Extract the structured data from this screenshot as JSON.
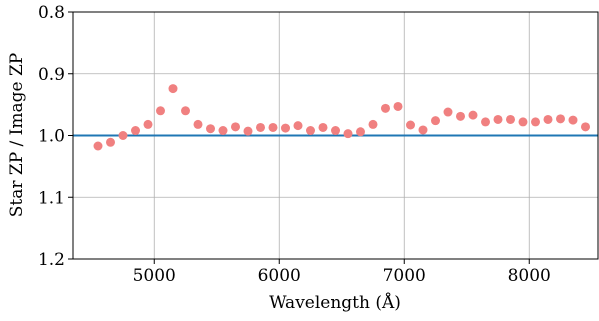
{
  "chart_data": {
    "type": "scatter",
    "title": "",
    "xlabel": "Wavelength (Å)",
    "ylabel": "Star ZP / Image ZP",
    "xlim": [
      4350,
      8550
    ],
    "ylim": [
      1.2,
      0.8
    ],
    "y_axis_inverted": true,
    "grid": true,
    "x_ticks": [
      {
        "value": 5000,
        "label": "5000"
      },
      {
        "value": 6000,
        "label": "6000"
      },
      {
        "value": 7000,
        "label": "7000"
      },
      {
        "value": 8000,
        "label": "8000"
      }
    ],
    "y_ticks": [
      {
        "value": 0.8,
        "label": "0.8"
      },
      {
        "value": 0.9,
        "label": "0.9"
      },
      {
        "value": 1.0,
        "label": "1.0"
      },
      {
        "value": 1.1,
        "label": "1.1"
      },
      {
        "value": 1.2,
        "label": "1.2"
      }
    ],
    "reference_line": {
      "y": 1.0,
      "color": "#1f77b4"
    },
    "series": [
      {
        "color": "#f08080",
        "x": [
          4550,
          4650,
          4750,
          4850,
          4950,
          5050,
          5150,
          5250,
          5350,
          5450,
          5550,
          5650,
          5750,
          5850,
          5950,
          6050,
          6150,
          6250,
          6350,
          6450,
          6550,
          6650,
          6750,
          6850,
          6950,
          7050,
          7150,
          7250,
          7350,
          7450,
          7550,
          7650,
          7750,
          7850,
          7950,
          8050,
          8150,
          8250,
          8350,
          8450
        ],
        "y": [
          1.017,
          1.011,
          1.0,
          0.992,
          0.982,
          0.96,
          0.924,
          0.96,
          0.982,
          0.989,
          0.992,
          0.986,
          0.993,
          0.987,
          0.987,
          0.988,
          0.984,
          0.992,
          0.987,
          0.992,
          0.997,
          0.994,
          0.982,
          0.956,
          0.953,
          0.983,
          0.991,
          0.976,
          0.962,
          0.969,
          0.967,
          0.978,
          0.974,
          0.974,
          0.978,
          0.978,
          0.974,
          0.973,
          0.975,
          0.986
        ]
      }
    ]
  }
}
